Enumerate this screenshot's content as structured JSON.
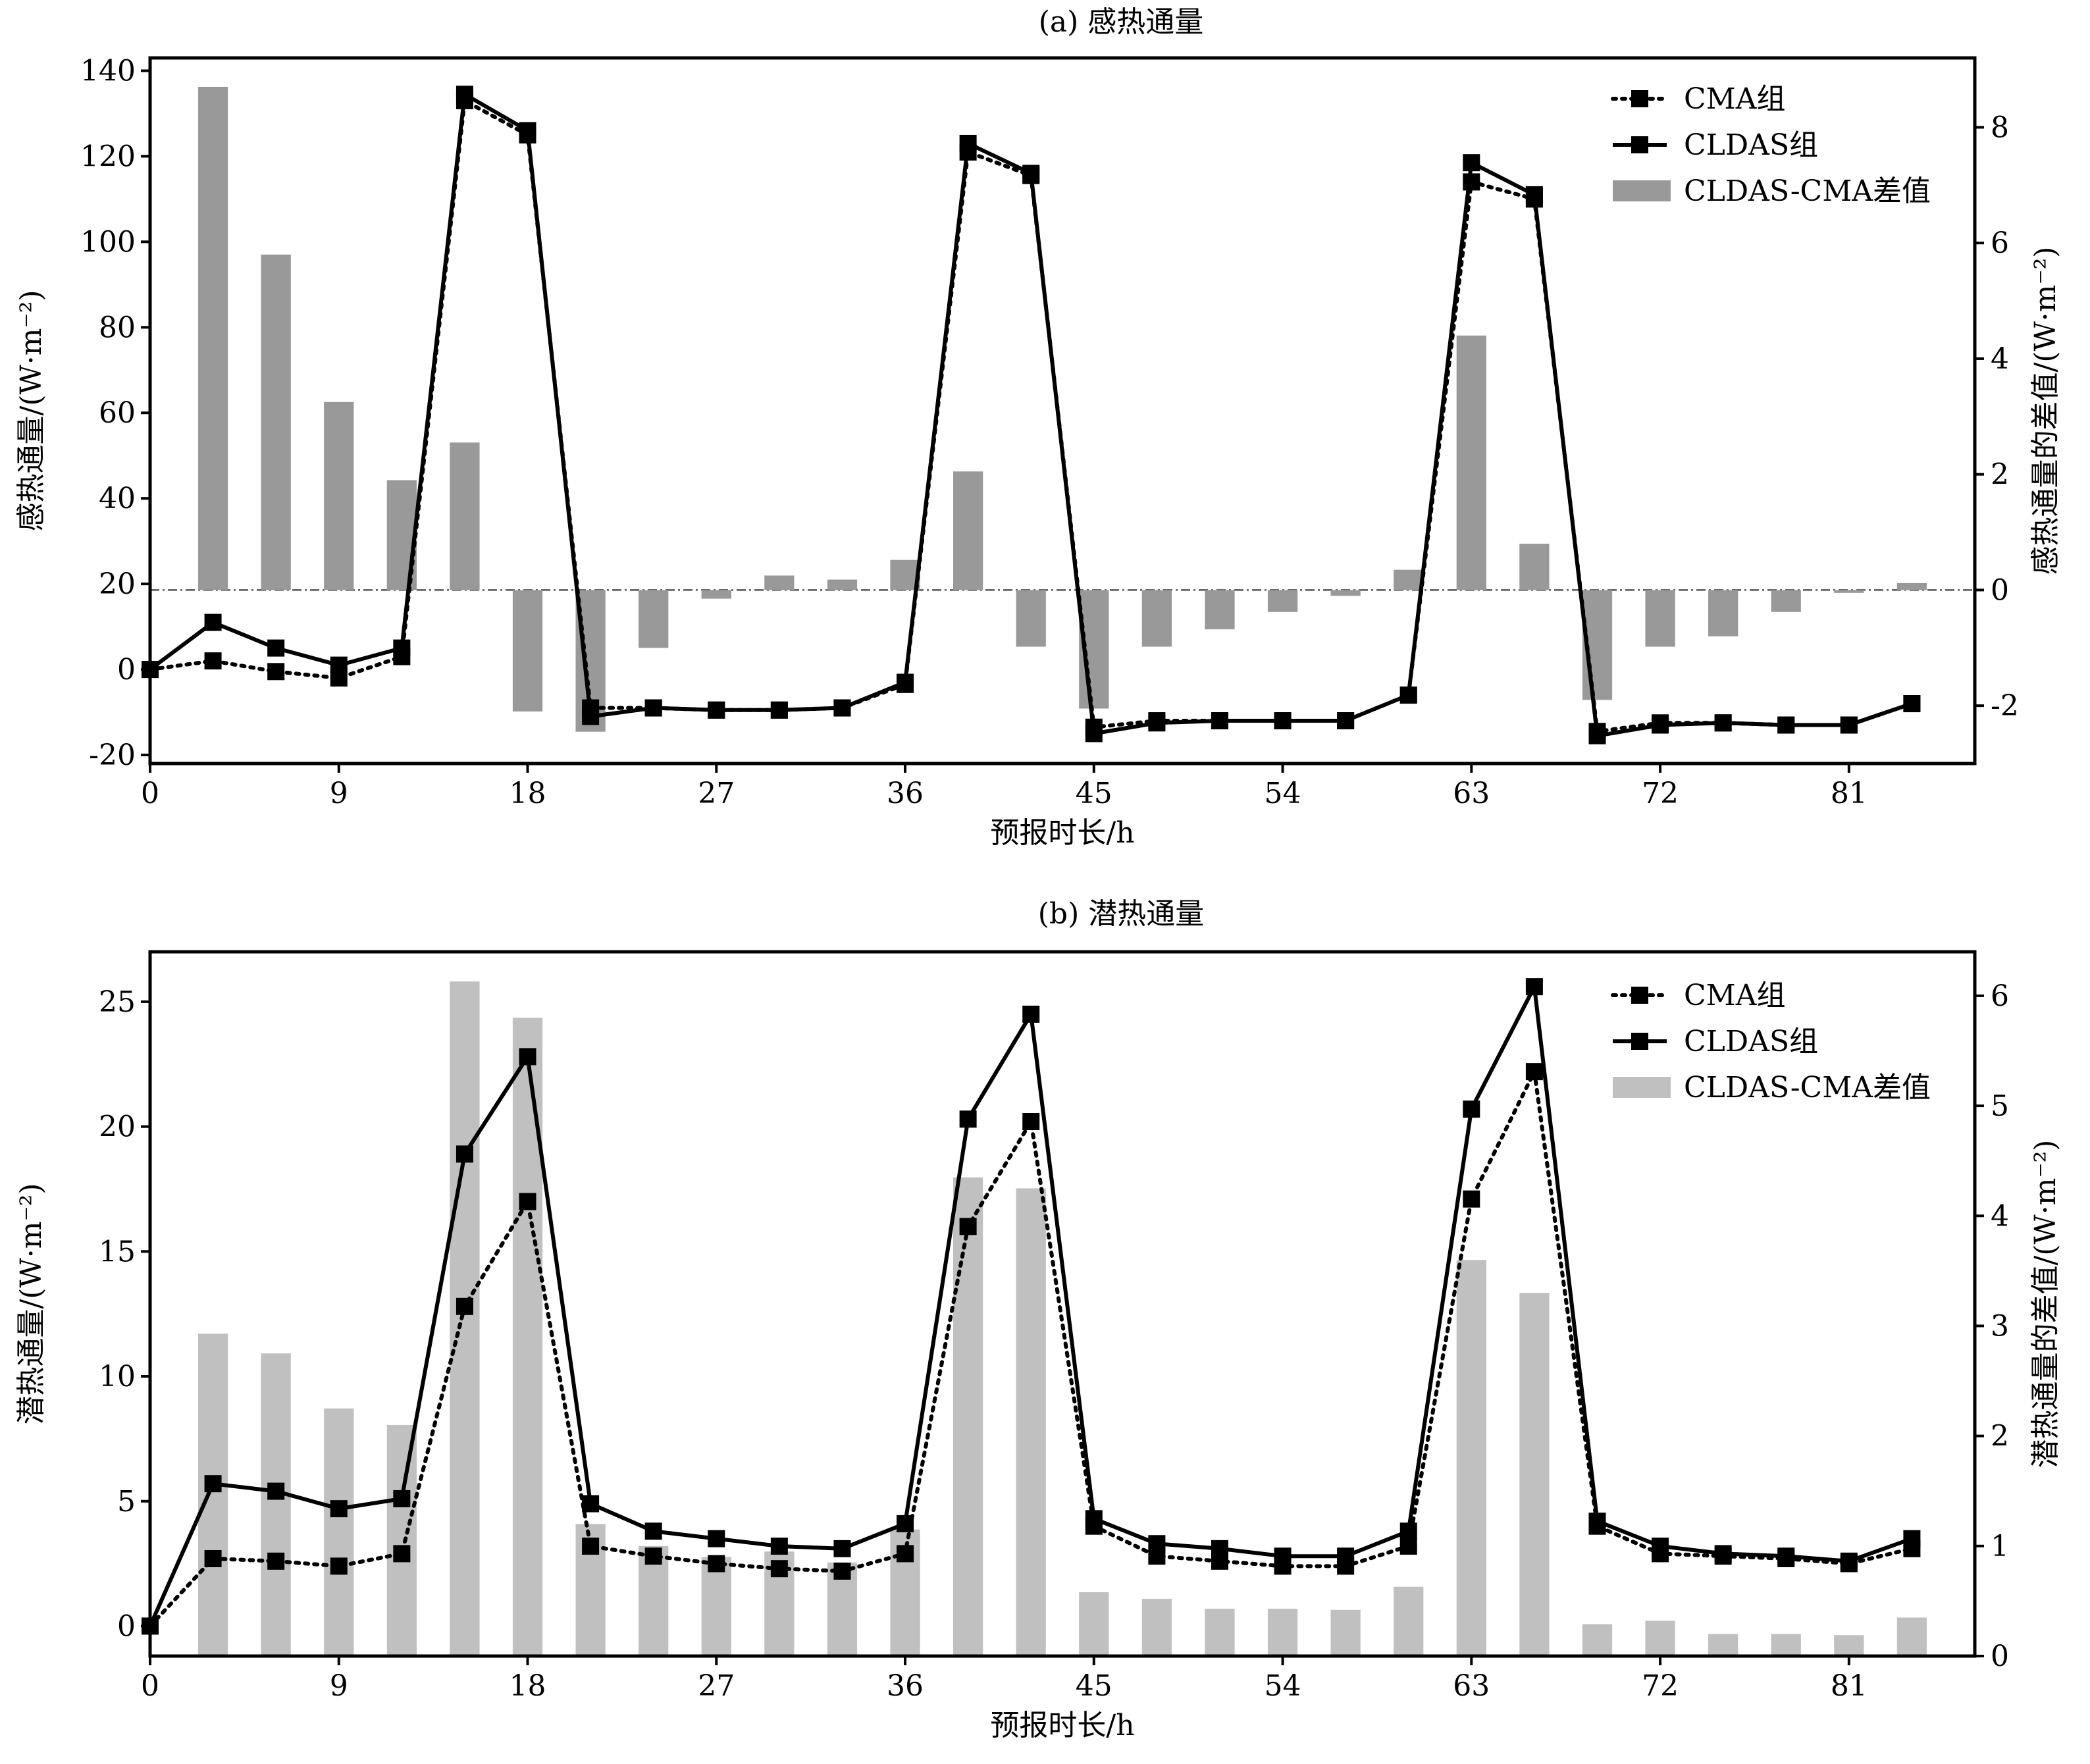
{
  "chart_data": [
    {
      "type": "line",
      "title": "(a) 感热通量",
      "xlabel": "预报时长/h",
      "ylabel": "感热通量/(W·m⁻²)",
      "ylabel_right": "感热通量的差值/(W·m⁻²)",
      "x_ticks": [
        0,
        9,
        18,
        27,
        36,
        45,
        54,
        63,
        72,
        81
      ],
      "xlim": [
        0,
        87
      ],
      "ylim": [
        -22,
        143
      ],
      "y_ticks": [
        -20,
        0,
        20,
        40,
        60,
        80,
        100,
        120,
        140
      ],
      "ylim_right": [
        -3,
        9.2
      ],
      "y_ticks_right": [
        -2,
        0,
        2,
        4,
        6,
        8
      ],
      "x": [
        0,
        3,
        6,
        9,
        12,
        15,
        18,
        21,
        24,
        27,
        30,
        33,
        36,
        39,
        42,
        45,
        48,
        51,
        54,
        57,
        60,
        63,
        66,
        69,
        72,
        75,
        78,
        81,
        84
      ],
      "series": [
        {
          "name": "CMA组",
          "kind": "line",
          "axis": "left",
          "style": "dotted",
          "values": [
            0,
            2,
            -0.5,
            -2,
            3,
            133,
            125,
            -9,
            -9,
            -9.5,
            -9.5,
            -9,
            -3.5,
            121,
            115.5,
            -13.5,
            -12,
            -12,
            -12,
            -12,
            -6,
            114,
            110,
            -14.5,
            -12.5,
            -12.5,
            -13,
            -13,
            -8
          ]
        },
        {
          "name": "CLDAS组",
          "kind": "line",
          "axis": "left",
          "style": "solid",
          "values": [
            0,
            11,
            5,
            1,
            5,
            134.5,
            126,
            -11,
            -9,
            -9.5,
            -9.5,
            -9,
            -3,
            123,
            116,
            -15,
            -12.5,
            -12,
            -12,
            -12,
            -6,
            118.5,
            111,
            -15.5,
            -13,
            -12.5,
            -13,
            -13,
            -8
          ]
        },
        {
          "name": "CLDAS-CMA差值",
          "kind": "bar",
          "axis": "right",
          "x": [
            3,
            6,
            9,
            12,
            15,
            18,
            21,
            24,
            27,
            30,
            33,
            36,
            39,
            42,
            45,
            48,
            51,
            54,
            57,
            60,
            63,
            66,
            69,
            72,
            75,
            78,
            81,
            84
          ],
          "values": [
            8.7,
            5.8,
            3.25,
            1.9,
            2.55,
            -2.1,
            -2.45,
            -1.0,
            -0.15,
            0.25,
            0.18,
            0.52,
            2.05,
            -0.98,
            -2.05,
            -0.98,
            -0.68,
            -0.38,
            -0.1,
            0.35,
            4.4,
            0.8,
            -1.9,
            -0.98,
            -0.8,
            -0.38,
            -0.05,
            0.12
          ]
        }
      ],
      "legend": "upper-right",
      "reference_line": 0
    },
    {
      "type": "line",
      "title": "(b) 潜热通量",
      "xlabel": "预报时长/h",
      "ylabel": "潜热通量/(W·m⁻²)",
      "ylabel_right": "潜热通量的差值/(W·m⁻²)",
      "x_ticks": [
        0,
        9,
        18,
        27,
        36,
        45,
        54,
        63,
        72,
        81
      ],
      "xlim": [
        0,
        87
      ],
      "ylim": [
        -1.2,
        27
      ],
      "y_ticks": [
        0,
        5,
        10,
        15,
        20,
        25
      ],
      "ylim_right": [
        0,
        6.4
      ],
      "y_ticks_right": [
        0,
        1,
        2,
        3,
        4,
        5,
        6
      ],
      "x": [
        0,
        3,
        6,
        9,
        12,
        15,
        18,
        21,
        24,
        27,
        30,
        33,
        36,
        39,
        42,
        45,
        48,
        51,
        54,
        57,
        60,
        63,
        66,
        69,
        72,
        75,
        78,
        81,
        84
      ],
      "series": [
        {
          "name": "CMA组",
          "kind": "line",
          "axis": "left",
          "style": "dotted",
          "values": [
            0,
            2.7,
            2.6,
            2.4,
            2.9,
            12.8,
            17,
            3.2,
            2.8,
            2.5,
            2.3,
            2.2,
            2.9,
            16,
            20.2,
            4,
            2.8,
            2.6,
            2.4,
            2.4,
            3.2,
            17.1,
            22.2,
            4,
            2.9,
            2.8,
            2.7,
            2.5,
            3.1
          ]
        },
        {
          "name": "CLDAS组",
          "kind": "line",
          "axis": "left",
          "style": "solid",
          "values": [
            0,
            5.7,
            5.4,
            4.7,
            5.1,
            18.9,
            22.8,
            4.9,
            3.8,
            3.5,
            3.2,
            3.1,
            4.1,
            20.3,
            24.5,
            4.3,
            3.3,
            3.1,
            2.8,
            2.8,
            3.8,
            20.7,
            25.6,
            4.2,
            3.2,
            2.9,
            2.8,
            2.6,
            3.5
          ]
        },
        {
          "name": "CLDAS-CMA差值",
          "kind": "bar",
          "axis": "right",
          "x": [
            3,
            6,
            9,
            12,
            15,
            18,
            21,
            24,
            27,
            30,
            33,
            36,
            39,
            42,
            45,
            48,
            51,
            54,
            57,
            60,
            63,
            66,
            69,
            72,
            75,
            78,
            81,
            84
          ],
          "values": [
            2.93,
            2.75,
            2.25,
            2.1,
            6.13,
            5.8,
            1.2,
            1.0,
            0.9,
            0.95,
            0.85,
            1.15,
            4.35,
            4.25,
            0.58,
            0.52,
            0.43,
            0.43,
            0.42,
            0.63,
            3.6,
            3.3,
            0.29,
            0.32,
            0.2,
            0.2,
            0.19,
            0.35
          ]
        }
      ],
      "legend": "upper-right"
    }
  ],
  "colors": {
    "line": "#000000",
    "bar_a": "#999999",
    "bar_b": "#c0c0c0",
    "reference_line": "#555555"
  }
}
